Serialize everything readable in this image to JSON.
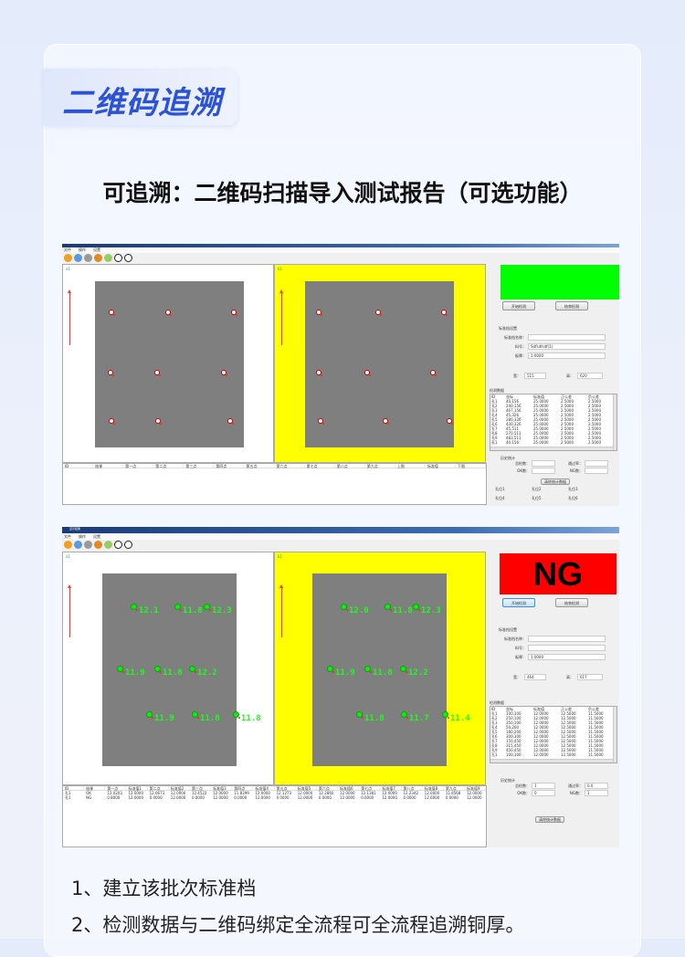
{
  "page": {
    "badge": "二维码追溯",
    "subtitle": "可追溯：二维码扫描导入测试报告（可选功能）",
    "bullets": [
      "1、建立该批次标准档",
      "2、检测数据与二维码绑定全流程可全流程追溯铜厚。"
    ]
  },
  "colors": {
    "accent": "#2c52d6",
    "pass": "#00ff00",
    "fail": "#ff0000",
    "right_panel": "#ffff00"
  },
  "apps": [
    {
      "window_title": "",
      "menu": [
        "文件",
        "操作",
        "设置"
      ],
      "panel_labels": [
        "a1",
        "b1"
      ],
      "status": {
        "text": "",
        "color": "#00ff00"
      },
      "buttons": [
        "开始检测",
        "结束检测"
      ],
      "std": {
        "title": "标准档设置",
        "name_label": "标准档名称：",
        "name_value": "",
        "part_label": "料号：",
        "part_value": "Sdfsdfsdf(1)",
        "thick_label": "板厚：",
        "thick_value": "1.0000",
        "w_label": "宽：",
        "w_value": "515",
        "h_label": "高：",
        "h_value": "620"
      },
      "data_title": "检测数据",
      "data_headers": [
        "ID",
        "坐标",
        "标准值",
        "正公差",
        "负公差"
      ],
      "data_rows": [
        [
          "孔1",
          "40,156",
          "25.0000",
          "2.5000",
          "2.5000"
        ],
        [
          "孔2",
          "240,156",
          "25.0000",
          "2.5000",
          "2.5000"
        ],
        [
          "孔3",
          "467,156",
          "25.0000",
          "2.5000",
          "2.5000"
        ],
        [
          "孔4",
          "45,326",
          "25.0000",
          "2.5000",
          "2.5000"
        ],
        [
          "孔5",
          "280,326",
          "25.0000",
          "2.5000",
          "2.5000"
        ],
        [
          "孔6",
          "430,326",
          "25.0000",
          "2.5000",
          "2.5000"
        ],
        [
          "孔7",
          "45,511",
          "25.0000",
          "2.5000",
          "2.5000"
        ],
        [
          "孔8",
          "270,511",
          "25.0000",
          "2.5000",
          "2.5000"
        ],
        [
          "孔9",
          "483,511",
          "25.0000",
          "2.5000",
          "2.5000"
        ],
        [
          "孔1",
          "40,156",
          "25.0000",
          "2.5000",
          "2.5000"
        ]
      ],
      "history": {
        "title": "历史统计",
        "total_label": "总检数：",
        "total": "",
        "rate_label": "通过率：",
        "rate": "",
        "ok_label": "OK数：",
        "ok": "",
        "ng_label": "NG数：",
        "ng": "",
        "clear": "清除统计数据"
      },
      "hole_labels": [
        "孔位1",
        "孔位2",
        "孔位3",
        "孔位4",
        "孔位5",
        "孔位6"
      ],
      "table_headers": [
        "ID",
        "结果",
        "第一点",
        "第二点",
        "第三点",
        "第四点",
        "第五点",
        "第六点",
        "第七点",
        "第八点",
        "第九点",
        "上限",
        "标准值",
        "下限"
      ],
      "table_rows": [],
      "left_values": [],
      "right_values": []
    },
    {
      "window_title": "显示结果",
      "menu": [
        "文件",
        "操作",
        "设置"
      ],
      "panel_labels": [
        "a1",
        "b1"
      ],
      "status": {
        "text": "NG",
        "color": "#ff0000"
      },
      "buttons": [
        "开始检测",
        "结束检测"
      ],
      "std": {
        "title": "标准档设置",
        "name_label": "标准档名称：",
        "name_value": "",
        "part_label": "料号：",
        "part_value": "",
        "thick_label": "板厚：",
        "thick_value": "1.0000",
        "w_label": "宽：",
        "w_value": "464",
        "h_label": "高：",
        "h_value": "617"
      },
      "data_title": "检测数据",
      "data_headers": [
        "ID",
        "坐标",
        "标准值",
        "正公差",
        "负公差"
      ],
      "data_rows": [
        [
          "孔1",
          "100,100",
          "12.0000",
          "12.5000",
          "11.5000"
        ],
        [
          "孔2",
          "250,100",
          "12.0000",
          "12.5000",
          "11.5000"
        ],
        [
          "孔3",
          "350,100",
          "12.0000",
          "12.5000",
          "11.5000"
        ],
        [
          "孔4",
          "50,200",
          "12.0000",
          "12.5000",
          "11.5000"
        ],
        [
          "孔5",
          "180,200",
          "12.0000",
          "12.5000",
          "11.5000"
        ],
        [
          "孔6",
          "300,300",
          "12.0000",
          "12.5000",
          "11.5000"
        ],
        [
          "孔7",
          "150,450",
          "12.0000",
          "12.5000",
          "11.5000"
        ],
        [
          "孔8",
          "315,450",
          "12.0000",
          "12.5000",
          "11.5000"
        ],
        [
          "孔9",
          "450,450",
          "12.0000",
          "12.5000",
          "11.5000"
        ],
        [
          "孔1",
          "100,100",
          "12.0000",
          "12.5000",
          "11.5000"
        ]
      ],
      "history": {
        "title": "历史统计",
        "total_label": "总检数：",
        "total": "1",
        "rate_label": "通过率：",
        "rate": "0.0",
        "ok_label": "OK数：",
        "ok": "0",
        "ng_label": "NG数：",
        "ng": "1",
        "clear": "清除统计数据"
      },
      "hole_labels": [],
      "table_headers": [
        "ID",
        "结果",
        "第一点",
        "标准值1",
        "第二点",
        "标准值2",
        "第三点",
        "标准值3",
        "第四点",
        "标准值4",
        "第五点",
        "标准值5",
        "第六点",
        "标准值6",
        "第七点",
        "标准值7",
        "第八点",
        "标准值8",
        "第九点",
        "标准值9"
      ],
      "table_rows": [
        [
          "孔1",
          "OK",
          "12.0203",
          "12.0000",
          "12.0673",
          "12.0000",
          "12.4522",
          "12.0000",
          "11.8399",
          "12.0000",
          "12.1273",
          "12.0000",
          "12.2860",
          "12.0000",
          "12.1381",
          "12.0000",
          "12.2342",
          "12.0000",
          "11.8568",
          "12.0000"
        ],
        [
          "孔1",
          "NG",
          "0.8000",
          "12.0000",
          "0.0000",
          "12.0000",
          "0.0000",
          "12.0000",
          "0.0000",
          "12.0000",
          "0.0000",
          "12.0000",
          "0.0000",
          "12.0000",
          "0.0000",
          "12.0000",
          "0.0000",
          "12.0000",
          "0.0000",
          "12.0000"
        ]
      ],
      "left_values": [
        "12.1",
        "11.8",
        "12.3",
        "11.9",
        "11.8",
        "12.2",
        "11.9",
        "11.8",
        "11.8"
      ],
      "right_values": [
        "12.0",
        "11.8",
        "12.3",
        "11.9",
        "11.8",
        "12.2",
        "11.8",
        "11.7",
        "11.4"
      ]
    }
  ]
}
